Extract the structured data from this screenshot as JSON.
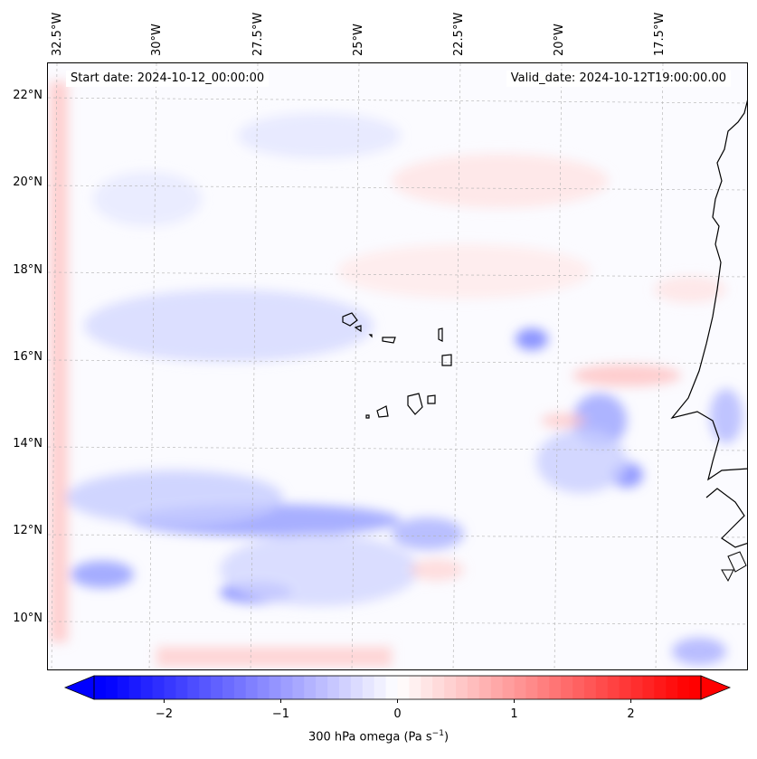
{
  "map": {
    "start_date": "Start date: 2024-10-12_00:00:00",
    "valid_date": "Valid_date: 2024-10-12T19:00:00.00",
    "lon_labels": [
      "32.5°W",
      "30°W",
      "27.5°W",
      "25°W",
      "22.5°W",
      "20°W",
      "17.5°W"
    ],
    "lat_labels": [
      "22°N",
      "20°N",
      "18°N",
      "16°N",
      "14°N",
      "12°N",
      "10°N"
    ],
    "colors": {
      "negative": "#0000ff",
      "positive": "#ff0000",
      "coastline": "#000000",
      "grid": "#b0b0b0"
    }
  },
  "colorbar": {
    "label_prefix": "300 hPa omega (Pa s",
    "label_exp": "−1",
    "label_suffix": ")",
    "range": [
      -2.6,
      2.6
    ],
    "ticks": [
      "−2",
      "−1",
      "0",
      "1",
      "2"
    ],
    "tick_values": [
      -2,
      -1,
      0,
      1,
      2
    ]
  }
}
